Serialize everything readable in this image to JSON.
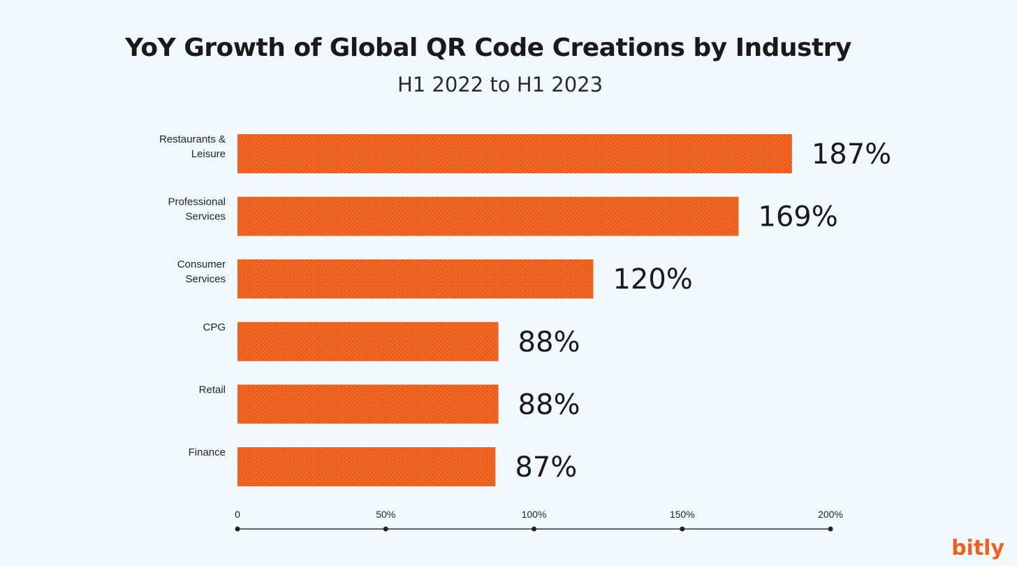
{
  "chart_data": {
    "type": "bar",
    "orientation": "horizontal",
    "title": "YoY Growth of Global QR Code Creations by Industry",
    "subtitle": "H1 2022 to H1 2023",
    "categories": [
      [
        "Restaurants &",
        "Leisure"
      ],
      [
        "Professional",
        "Services"
      ],
      [
        "Consumer",
        "Services"
      ],
      [
        "CPG"
      ],
      [
        "Retail"
      ],
      [
        "Finance"
      ]
    ],
    "values": [
      187,
      169,
      120,
      88,
      88,
      87
    ],
    "value_labels": [
      "187%",
      "169%",
      "120%",
      "88%",
      "88%",
      "87%"
    ],
    "xlim": [
      0,
      200
    ],
    "x_ticks": [
      0,
      50,
      100,
      150,
      200
    ],
    "x_tick_labels": [
      "0",
      "50%",
      "100%",
      "150%",
      "200%"
    ],
    "bar_color": "#f26522",
    "grid": false,
    "legend": "none"
  },
  "brand": "bitly"
}
